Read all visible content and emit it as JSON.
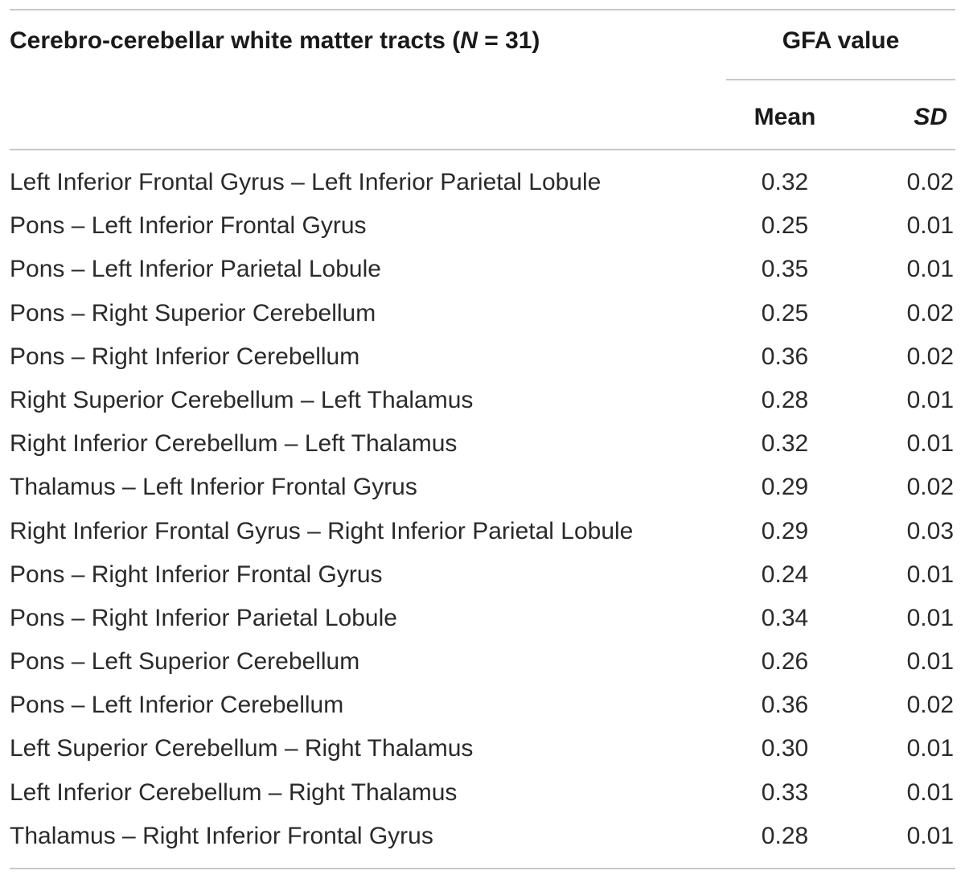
{
  "table": {
    "header": {
      "tract_label": "Cerebro-cerebellar white matter tracts (",
      "n_symbol": "N",
      "n_value": " = 31)",
      "group_label": "GFA value",
      "mean_label": "Mean",
      "sd_label": "SD"
    },
    "rows": [
      {
        "tract": "Left Inferior Frontal Gyrus – Left Inferior Parietal Lobule",
        "mean": "0.32",
        "sd": "0.02"
      },
      {
        "tract": "Pons – Left Inferior Frontal Gyrus",
        "mean": "0.25",
        "sd": "0.01"
      },
      {
        "tract": "Pons – Left Inferior Parietal Lobule",
        "mean": "0.35",
        "sd": "0.01"
      },
      {
        "tract": "Pons – Right Superior Cerebellum",
        "mean": "0.25",
        "sd": "0.02"
      },
      {
        "tract": "Pons – Right Inferior Cerebellum",
        "mean": "0.36",
        "sd": "0.02"
      },
      {
        "tract": "Right Superior Cerebellum – Left Thalamus",
        "mean": "0.28",
        "sd": "0.01"
      },
      {
        "tract": "Right Inferior Cerebellum – Left Thalamus",
        "mean": "0.32",
        "sd": "0.01"
      },
      {
        "tract": "Thalamus – Left Inferior Frontal Gyrus",
        "mean": "0.29",
        "sd": "0.02"
      },
      {
        "tract": "Right Inferior Frontal Gyrus – Right Inferior Parietal Lobule",
        "mean": "0.29",
        "sd": "0.03"
      },
      {
        "tract": "Pons – Right Inferior Frontal Gyrus",
        "mean": "0.24",
        "sd": "0.01"
      },
      {
        "tract": "Pons – Right Inferior Parietal Lobule",
        "mean": "0.34",
        "sd": "0.01"
      },
      {
        "tract": "Pons – Left Superior Cerebellum",
        "mean": "0.26",
        "sd": "0.01"
      },
      {
        "tract": "Pons – Left Inferior Cerebellum",
        "mean": "0.36",
        "sd": "0.02"
      },
      {
        "tract": "Left Superior Cerebellum – Right Thalamus",
        "mean": "0.30",
        "sd": "0.01"
      },
      {
        "tract": "Left Inferior Cerebellum – Right Thalamus",
        "mean": "0.33",
        "sd": "0.01"
      },
      {
        "tract": "Thalamus – Right Inferior Frontal Gyrus",
        "mean": "0.28",
        "sd": "0.01"
      }
    ]
  }
}
